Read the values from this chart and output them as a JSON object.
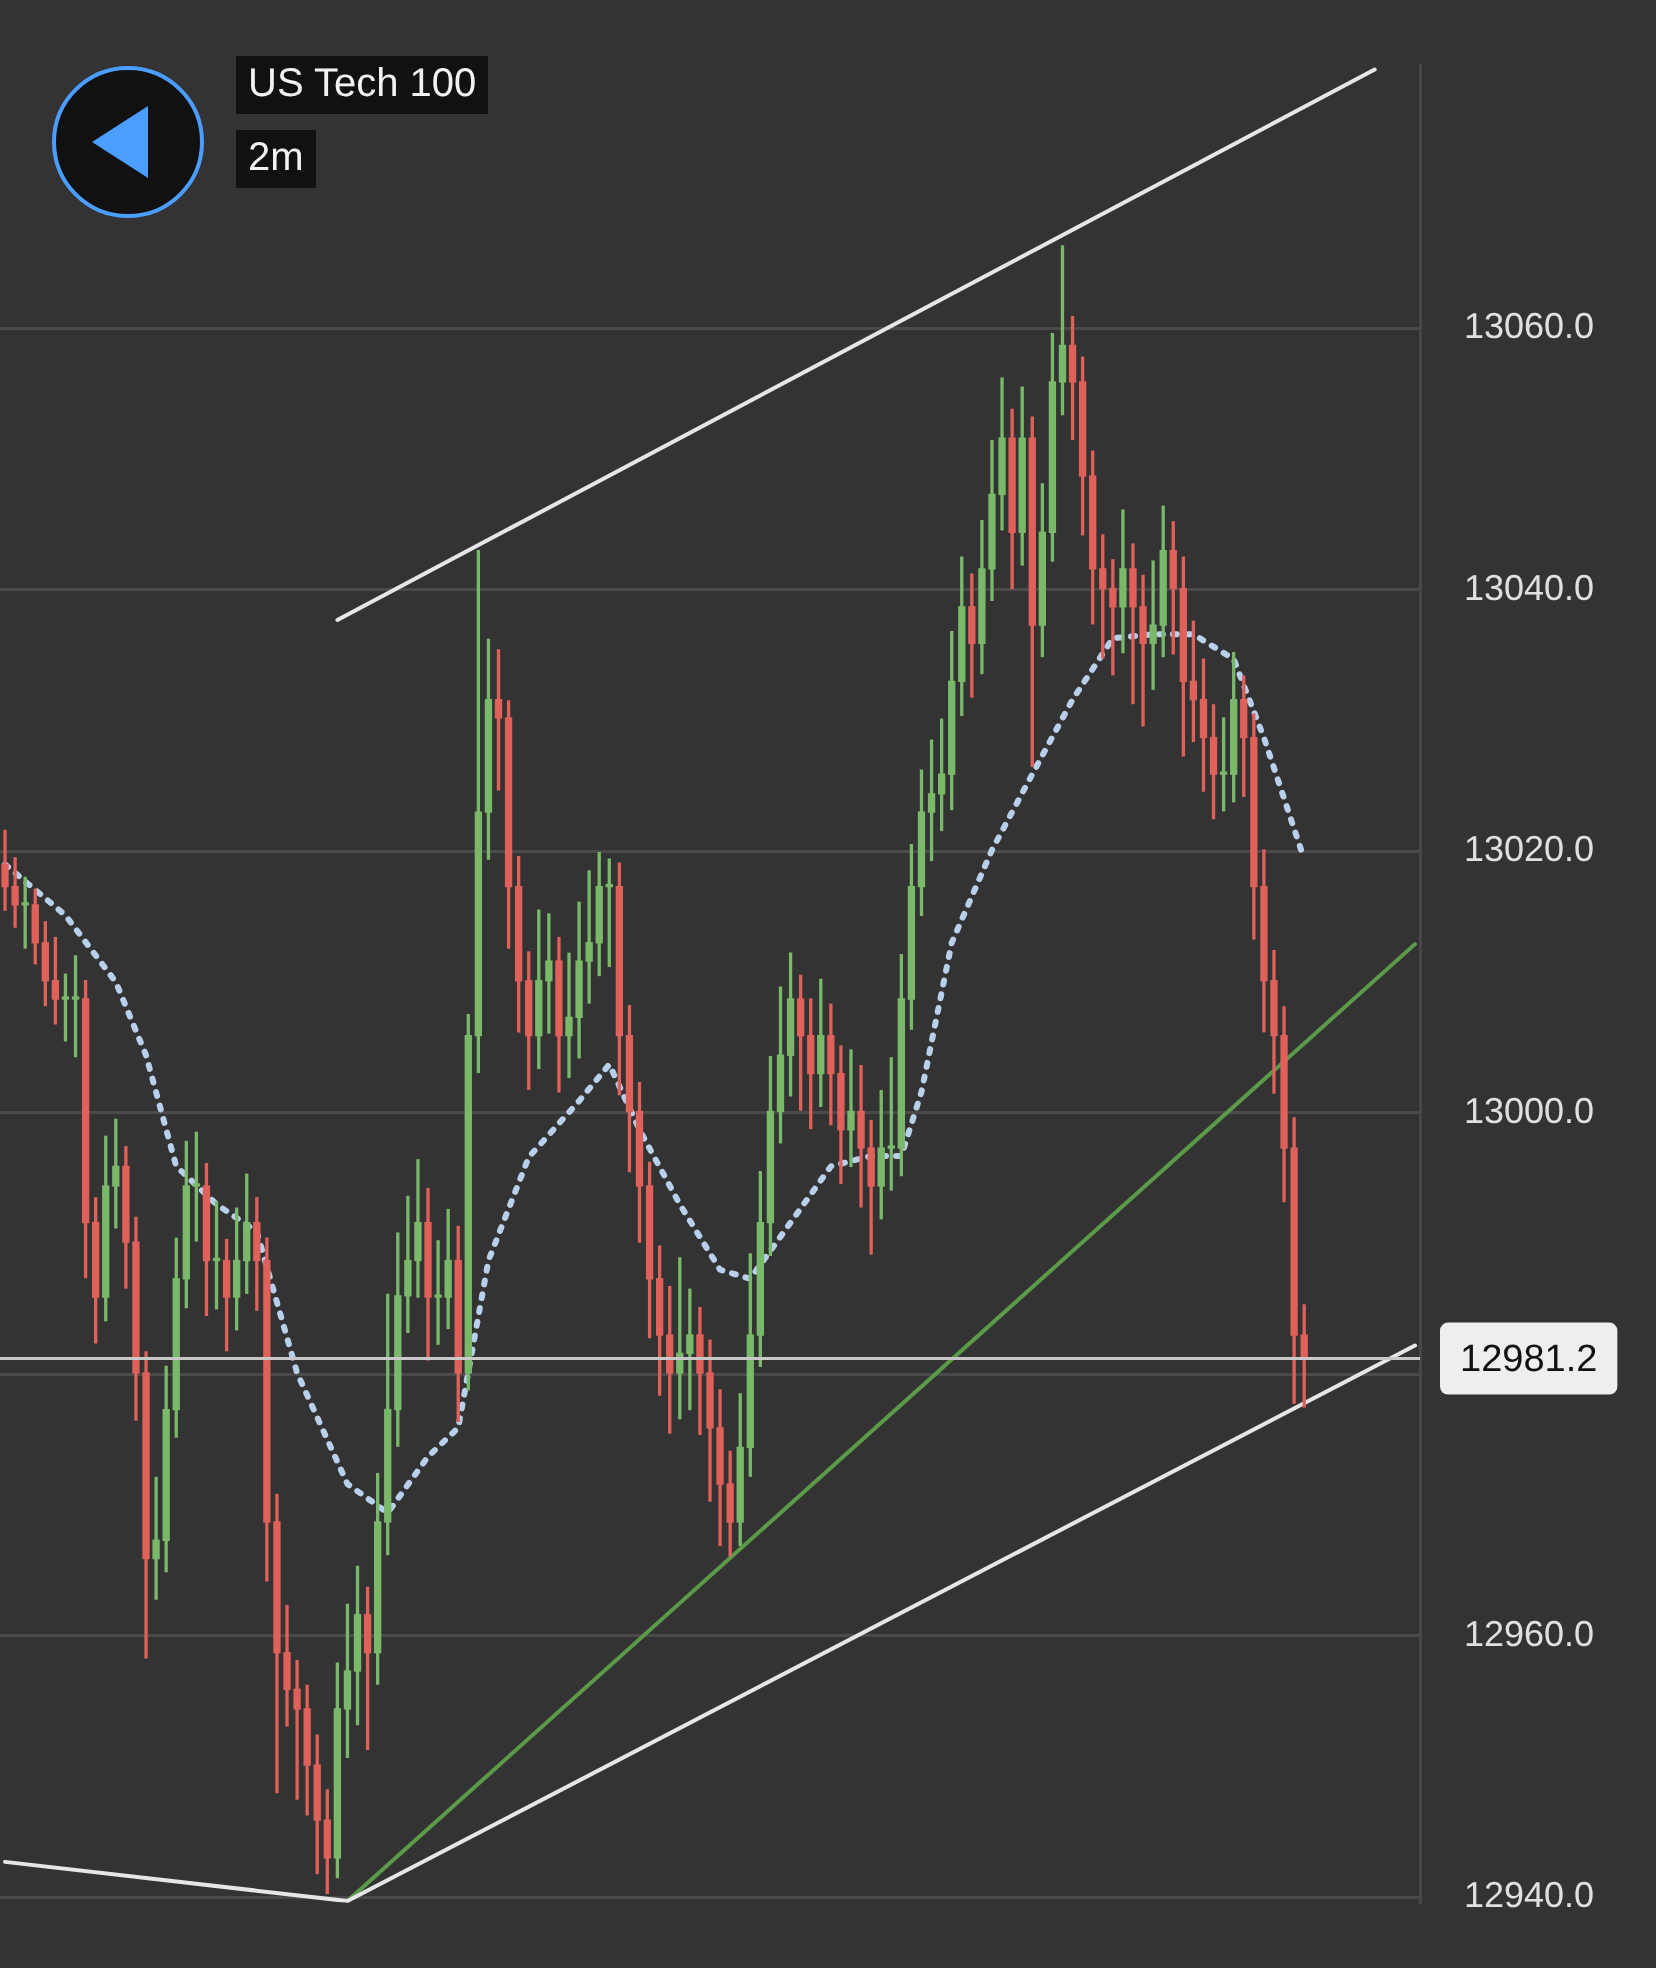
{
  "chart_data": {
    "type": "candlestick",
    "title": "US Tech 100",
    "subtitle": "2m",
    "categories": [
      null,
      null,
      null,
      null,
      null,
      null,
      null,
      null,
      null,
      null,
      null,
      null,
      null,
      null,
      null,
      null,
      null,
      null,
      null,
      null,
      null,
      null,
      null,
      null,
      null,
      null,
      null,
      null,
      null,
      null,
      null,
      null,
      null,
      null,
      null,
      null,
      null,
      null,
      null,
      null,
      null,
      null,
      null,
      null,
      null,
      null,
      null,
      null,
      null,
      null,
      null,
      null,
      null,
      null,
      null,
      null,
      null,
      null,
      null,
      null,
      null,
      null,
      null,
      null,
      null,
      null,
      null,
      null,
      null,
      null,
      null,
      null,
      null,
      null,
      null,
      null,
      null,
      null,
      null,
      null,
      null,
      null,
      null,
      null,
      null,
      null,
      null,
      null,
      null,
      null,
      null,
      null,
      null,
      null,
      null,
      null,
      null,
      null,
      null,
      null,
      null,
      null,
      null,
      null,
      null,
      null,
      null,
      null,
      null,
      null,
      null,
      null,
      null,
      null,
      null,
      null,
      null,
      null,
      null,
      null,
      null,
      null,
      null,
      null,
      null,
      null,
      null,
      null,
      null,
      null,
      null,
      null,
      null,
      null,
      null,
      null,
      null,
      null,
      null,
      null,
      null
    ],
    "ylim": [
      12939.6,
      13080.1
    ],
    "yticks": [
      {
        "value": 12940,
        "label": "12940.0"
      },
      {
        "value": 12960,
        "label": "12960.0"
      },
      {
        "value": 12980,
        "label": null
      },
      {
        "value": 13000,
        "label": "13000.0"
      },
      {
        "value": 13020,
        "label": "13020.0"
      },
      {
        "value": 13040,
        "label": "13040.0"
      },
      {
        "value": 13060,
        "label": "13060.0"
      }
    ],
    "grid": "y",
    "legend": false,
    "tick_labels": "y",
    "ref_lines": [
      {
        "axis": "y",
        "value": 12981.2,
        "label": "12981.2",
        "color": "#c8c8c8"
      }
    ],
    "series": [
      {
        "type": "line",
        "color": "#e6e6e6",
        "values": [
          null,
          null,
          null,
          null,
          null,
          null,
          null,
          null,
          null,
          null,
          null,
          null,
          null,
          null,
          null,
          null,
          null,
          null,
          null,
          null,
          null,
          null,
          null,
          null,
          null,
          null,
          null,
          null,
          null,
          null,
          null,
          null,
          null,
          13037.7,
          null,
          null,
          null,
          null,
          null,
          null,
          null,
          null,
          null,
          null,
          null,
          null,
          null,
          null,
          null,
          null,
          null,
          null,
          null,
          null,
          null,
          null,
          null,
          null,
          null,
          null,
          null,
          null,
          null,
          null,
          null,
          null,
          null,
          null,
          null,
          null,
          null,
          null,
          null,
          null,
          null,
          null,
          null,
          null,
          null,
          null,
          null,
          null,
          null,
          null,
          null,
          null,
          null,
          null,
          null,
          null,
          null,
          null,
          null,
          null,
          null,
          null,
          null,
          null,
          null,
          null,
          null,
          null,
          null,
          null,
          null,
          null,
          null,
          null,
          null,
          null,
          null,
          null,
          null,
          null,
          null,
          null,
          null,
          null,
          null,
          null,
          null,
          null,
          null,
          null,
          null,
          null,
          null,
          null,
          null,
          null,
          null,
          null,
          null,
          null,
          null,
          null,
          13079.8,
          null,
          null,
          null,
          null
        ]
      },
      {
        "type": "line",
        "color": "#e6e6e6",
        "values": [
          null,
          null,
          null,
          null,
          null,
          null,
          null,
          null,
          null,
          null,
          null,
          null,
          null,
          null,
          null,
          null,
          null,
          null,
          null,
          null,
          null,
          null,
          null,
          null,
          null,
          null,
          null,
          null,
          null,
          null,
          null,
          null,
          null,
          null,
          12939.7,
          null,
          null,
          null,
          null,
          null,
          null,
          null,
          null,
          null,
          null,
          null,
          null,
          null,
          null,
          null,
          null,
          null,
          null,
          null,
          null,
          null,
          null,
          null,
          null,
          null,
          null,
          null,
          null,
          null,
          null,
          null,
          null,
          null,
          null,
          null,
          null,
          null,
          null,
          null,
          null,
          null,
          null,
          null,
          null,
          null,
          null,
          null,
          null,
          null,
          null,
          null,
          null,
          null,
          null,
          null,
          null,
          null,
          null,
          null,
          null,
          null,
          null,
          null,
          null,
          null,
          null,
          null,
          null,
          null,
          null,
          null,
          null,
          null,
          null,
          null,
          null,
          null,
          null,
          null,
          null,
          null,
          null,
          null,
          null,
          null,
          null,
          null,
          null,
          null,
          null,
          null,
          null,
          null,
          null,
          null,
          null,
          null,
          null,
          null,
          null,
          null,
          null,
          null,
          null,
          null,
          12982.2
        ]
      },
      {
        "type": "line",
        "color": "#e6e6e6",
        "values": [
          12942.7,
          null,
          null,
          null,
          null,
          null,
          null,
          null,
          null,
          null,
          null,
          null,
          null,
          null,
          null,
          null,
          null,
          null,
          null,
          null,
          null,
          null,
          null,
          null,
          null,
          null,
          null,
          null,
          null,
          null,
          null,
          null,
          null,
          null,
          12939.7,
          null,
          null,
          null,
          null,
          null,
          null,
          null,
          null,
          null,
          null,
          null,
          null,
          null,
          null,
          null,
          null,
          null,
          null,
          null,
          null,
          null,
          null,
          null,
          null,
          null,
          null,
          null,
          null,
          null,
          null,
          null,
          null,
          null,
          null,
          null,
          null,
          null,
          null,
          null,
          null,
          null,
          null,
          null,
          null,
          null,
          null,
          null,
          null,
          null,
          null,
          null,
          null,
          null,
          null,
          null,
          null,
          null,
          null,
          null,
          null,
          null,
          null,
          null,
          null,
          null,
          null,
          null,
          null,
          null,
          null,
          null,
          null,
          null,
          null,
          null,
          null,
          null,
          null,
          null,
          null,
          null,
          null,
          null,
          null,
          null,
          null,
          null,
          null,
          null,
          null,
          null,
          null,
          null,
          null,
          null,
          null,
          null,
          null,
          null,
          null,
          null,
          null,
          null,
          null,
          null,
          null
        ]
      },
      {
        "type": "line",
        "color": "#5a9a48",
        "values": [
          null,
          null,
          null,
          null,
          null,
          null,
          null,
          null,
          null,
          null,
          null,
          null,
          null,
          null,
          null,
          null,
          null,
          null,
          null,
          null,
          null,
          null,
          null,
          null,
          null,
          null,
          null,
          null,
          null,
          null,
          null,
          null,
          null,
          null,
          12939.7,
          null,
          null,
          null,
          null,
          null,
          null,
          null,
          null,
          null,
          null,
          null,
          null,
          null,
          null,
          null,
          null,
          null,
          null,
          null,
          null,
          null,
          null,
          null,
          null,
          null,
          null,
          null,
          null,
          null,
          null,
          null,
          null,
          null,
          null,
          null,
          null,
          null,
          null,
          null,
          null,
          null,
          null,
          null,
          null,
          null,
          null,
          null,
          null,
          null,
          null,
          null,
          null,
          null,
          null,
          null,
          null,
          null,
          null,
          null,
          null,
          null,
          null,
          null,
          null,
          null,
          null,
          null,
          null,
          null,
          null,
          null,
          null,
          null,
          null,
          null,
          null,
          null,
          null,
          null,
          null,
          null,
          null,
          null,
          null,
          null,
          null,
          null,
          null,
          null,
          null,
          null,
          null,
          null,
          null,
          null,
          null,
          null,
          null,
          null,
          null,
          null,
          null,
          null,
          null,
          null,
          13012.9
        ]
      },
      {
        "type": "line",
        "color": "#b8d0ec",
        "line_style": "dotted",
        "values": [
          13019,
          null,
          null,
          null,
          null,
          null,
          13015.1,
          null,
          null,
          null,
          null,
          13010,
          null,
          null,
          13004.4,
          null,
          null,
          12995.9,
          null,
          null,
          null,
          12993,
          null,
          null,
          null,
          12990.9,
          null,
          null,
          null,
          12980.1,
          null,
          null,
          null,
          null,
          12971.6,
          null,
          null,
          null,
          12969.4,
          null,
          null,
          null,
          12973.7,
          null,
          null,
          12975.9,
          null,
          null,
          12988.7,
          null,
          null,
          null,
          12996.6,
          null,
          null,
          null,
          null,
          13000.9,
          null,
          null,
          13003.7,
          null,
          null,
          12998.7,
          null,
          null,
          null,
          12993,
          null,
          null,
          null,
          12988,
          null,
          null,
          12987.3,
          null,
          null,
          null,
          12991.6,
          null,
          null,
          null,
          12995.9,
          null,
          null,
          null,
          12996.7,
          null,
          null,
          12996.7,
          null,
          13001.6,
          null,
          null,
          13013,
          null,
          null,
          null,
          13020.1,
          null,
          null,
          null,
          13025.9,
          null,
          null,
          null,
          13031.6,
          null,
          null,
          null,
          13036.3,
          null,
          null,
          null,
          13036.6,
          null,
          null,
          null,
          13036.6,
          null,
          null,
          null,
          13034.7,
          null,
          null,
          13028.7,
          null,
          null,
          null,
          13019.4,
          null,
          null,
          null,
          null,
          null,
          null,
          null,
          null,
          null,
          null,
          null
        ]
      },
      {
        "type": "candlestick",
        "colors": [
          "#e0605a",
          "#e0605a",
          "#7ab86a",
          "#e0605a",
          "#e0605a",
          "#e0605a",
          "#7ab86a",
          "#7ab86a",
          "#e0605a",
          "#e0605a",
          "#7ab86a",
          "#7ab86a",
          "#e0605a",
          "#e0605a",
          "#e0605a",
          "#7ab86a",
          "#7ab86a",
          "#7ab86a",
          "#7ab86a",
          "#7ab86a",
          "#e0605a",
          "#7ab86a",
          "#e0605a",
          "#7ab86a",
          "#7ab86a",
          "#e0605a",
          "#e0605a",
          "#e0605a",
          "#e0605a",
          "#e0605a",
          "#e0605a",
          "#e0605a",
          "#e0605a",
          "#7ab86a",
          "#7ab86a",
          "#7ab86a",
          "#e0605a",
          "#7ab86a",
          "#7ab86a",
          "#7ab86a",
          "#7ab86a",
          "#7ab86a",
          "#e0605a",
          "#7ab86a",
          "#7ab86a",
          "#e0605a",
          "#7ab86a",
          "#7ab86a",
          "#7ab86a",
          "#e0605a",
          "#e0605a",
          "#e0605a",
          "#e0605a",
          "#7ab86a",
          "#7ab86a",
          "#e0605a",
          "#7ab86a",
          "#7ab86a",
          "#7ab86a",
          "#7ab86a",
          "#7ab86a",
          "#e0605a",
          "#e0605a",
          "#e0605a",
          "#e0605a",
          "#e0605a",
          "#e0605a",
          "#7ab86a",
          "#7ab86a",
          "#e0605a",
          "#e0605a",
          "#e0605a",
          "#e0605a",
          "#7ab86a",
          "#7ab86a",
          "#7ab86a",
          "#7ab86a",
          "#7ab86a",
          "#7ab86a",
          "#e0605a",
          "#e0605a",
          "#7ab86a",
          "#e0605a",
          "#e0605a",
          "#7ab86a",
          "#e0605a",
          "#e0605a",
          "#7ab86a",
          "#7ab86a",
          "#7ab86a",
          "#7ab86a",
          "#7ab86a",
          "#7ab86a",
          "#7ab86a",
          "#7ab86a",
          "#7ab86a",
          "#e0605a",
          "#7ab86a",
          "#7ab86a",
          "#7ab86a",
          "#e0605a",
          "#7ab86a",
          "#e0605a",
          "#7ab86a",
          "#7ab86a",
          "#7ab86a",
          "#e0605a",
          "#e0605a",
          "#e0605a",
          "#e0605a",
          "#e0605a",
          "#7ab86a",
          "#e0605a",
          "#e0605a",
          "#7ab86a",
          "#7ab86a",
          "#e0605a",
          "#e0605a",
          "#e0605a",
          "#e0605a",
          "#e0605a",
          "#7ab86a",
          "#7ab86a",
          "#e0605a",
          "#e0605a",
          "#e0605a",
          "#e0605a",
          "#e0605a",
          "#e0605a",
          "#e0605a",
          null,
          null,
          null,
          null,
          null,
          null,
          null,
          null,
          null,
          null,
          null
        ],
        "ohlc": [
          [
            13019,
            13021.6,
            13015.5,
            13017.3
          ],
          [
            13017.3,
            13019.5,
            13014.2,
            13015.9
          ],
          [
            13015.9,
            13018,
            13012.6,
            13015.9
          ],
          [
            13015.9,
            13017.1,
            13011.4,
            13013
          ],
          [
            13013,
            13014.6,
            13008.2,
            13010.1
          ],
          [
            13010.1,
            13013.4,
            13006.8,
            13008.7
          ],
          [
            13008.7,
            13010.6,
            13005.5,
            13008.7
          ],
          [
            13008.7,
            13012,
            13004.3,
            13008.7
          ],
          [
            13008.7,
            13010.1,
            12987.4,
            12991.6
          ],
          [
            12991.6,
            12993.5,
            12982.4,
            12985.9
          ],
          [
            12985.9,
            12998.2,
            12984.1,
            12994.4
          ],
          [
            12994.4,
            12999.5,
            12991.2,
            12995.9
          ],
          [
            12995.9,
            12997.4,
            12986.6,
            12990.1
          ],
          [
            12990.1,
            12992,
            12976.5,
            12980.1
          ],
          [
            12980.1,
            12981.7,
            12958.3,
            12965.9
          ],
          [
            12965.9,
            12972.1,
            12962.8,
            12967.3
          ],
          [
            12967.3,
            12980.6,
            12964.9,
            12977.3
          ],
          [
            12977.3,
            12990.4,
            12975.2,
            12987.3
          ],
          [
            12987.3,
            12997.8,
            12985.1,
            12994.4
          ],
          [
            12994.4,
            12998.5,
            12990.2,
            12994.4
          ],
          [
            12994.4,
            12996.1,
            12984.5,
            12988.7
          ],
          [
            12988.7,
            12993.2,
            12985,
            12988.7
          ],
          [
            12988.7,
            12990.3,
            12981.8,
            12985.9
          ],
          [
            12985.9,
            12992.7,
            12983.4,
            12988.7
          ],
          [
            12988.7,
            12995.3,
            12986.2,
            12991.6
          ],
          [
            12991.6,
            12993.5,
            12984.9,
            12988.7
          ],
          [
            12988.7,
            12990.4,
            12964.2,
            12968.7
          ],
          [
            12968.7,
            12970.8,
            12948,
            12958.7
          ],
          [
            12958.7,
            12962.3,
            12953.1,
            12955.9
          ],
          [
            12955.9,
            12958.1,
            12947.5,
            12954.4
          ],
          [
            12954.4,
            12956.2,
            12946.3,
            12950.1
          ],
          [
            12950.1,
            12952.4,
            12941.8,
            12945.9
          ],
          [
            12945.9,
            12948.2,
            12940.3,
            12943
          ],
          [
            12943,
            12957.9,
            12941.5,
            12954.4
          ],
          [
            12954.4,
            12962.4,
            12950.7,
            12957.3
          ],
          [
            12957.3,
            12965.3,
            12953.2,
            12961.6
          ],
          [
            12961.6,
            12963.7,
            12951.3,
            12958.7
          ],
          [
            12958.7,
            12972.4,
            12956.3,
            12968.7
          ],
          [
            12968.7,
            12986.1,
            12966.2,
            12977.3
          ],
          [
            12977.3,
            12990.8,
            12974.5,
            12986
          ],
          [
            12986,
            12993.6,
            12983.2,
            12988.7
          ],
          [
            12988.7,
            12996.4,
            12985.9,
            12991.6
          ],
          [
            12991.6,
            12994.2,
            12981.1,
            12985.9
          ],
          [
            12985.9,
            12990.2,
            12982.3,
            12985.9
          ],
          [
            12985.9,
            12992.6,
            12983.5,
            12988.7
          ],
          [
            12988.7,
            12991.3,
            12976.4,
            12980.1
          ],
          [
            12980.1,
            13007.5,
            12978.8,
            13005.9
          ],
          [
            13005.9,
            13043,
            13003.1,
            13023
          ],
          [
            13023,
            13036.2,
            13019.4,
            13031.6
          ],
          [
            13031.6,
            13035.4,
            13024.7,
            13030.2
          ],
          [
            13030.2,
            13031.5,
            13012.6,
            13017.3
          ],
          [
            13017.3,
            13019.6,
            13006.2,
            13010.1
          ],
          [
            13010.1,
            13012.3,
            13001.8,
            13005.9
          ],
          [
            13005.9,
            13015.5,
            13003.4,
            13010.1
          ],
          [
            13010.1,
            13015.2,
            13006.1,
            13011.6
          ],
          [
            13011.6,
            13013.4,
            13001.6,
            13005.9
          ],
          [
            13005.9,
            13012.2,
            13002.7,
            13007.3
          ],
          [
            13007.3,
            13016.1,
            13004.2,
            13011.6
          ],
          [
            13011.6,
            13018.5,
            13008.4,
            13013
          ],
          [
            13013,
            13019.9,
            13010.5,
            13017.3
          ],
          [
            13017.3,
            13019.4,
            13011.2,
            13017.3
          ],
          [
            13017.3,
            13019.1,
            13001.4,
            13005.9
          ],
          [
            13005.9,
            13008.2,
            12995.5,
            13000.1
          ],
          [
            13000.1,
            13002.3,
            12990.1,
            12994.4
          ],
          [
            12994.4,
            12996.2,
            12982.8,
            12987.3
          ],
          [
            12987.3,
            12989.8,
            12978.4,
            12983
          ],
          [
            12983,
            12986.7,
            12975.5,
            12980.1
          ],
          [
            12980.1,
            12988.9,
            12976.6,
            12981.6
          ],
          [
            12981.6,
            12986.5,
            12977.3,
            12983
          ],
          [
            12983,
            12985.1,
            12975.4,
            12980.1
          ],
          [
            12980.1,
            12982.6,
            12970.3,
            12975.9
          ],
          [
            12975.9,
            12978.8,
            12966.9,
            12971.6
          ],
          [
            12971.6,
            12974.1,
            12966.1,
            12968.7
          ],
          [
            12968.7,
            12978.5,
            12966.9,
            12974.4
          ],
          [
            12974.4,
            12989.2,
            12972.2,
            12983
          ],
          [
            12983,
            12995.5,
            12980.6,
            12991.6
          ],
          [
            12991.6,
            13004.3,
            12989.1,
            13000.1
          ],
          [
            13000.1,
            13009.6,
            12997.7,
            13004.4
          ],
          [
            13004.4,
            13012.2,
            13001.3,
            13008.7
          ],
          [
            13008.7,
            13010.5,
            13000.2,
            13005.9
          ],
          [
            13005.9,
            13008.7,
            12998.8,
            13003
          ],
          [
            13003,
            13010.2,
            13000.5,
            13005.9
          ],
          [
            13005.9,
            13008.3,
            12999.1,
            13003
          ],
          [
            13003,
            13005.1,
            12994.6,
            12998.7
          ],
          [
            12998.7,
            13004.8,
            12995.9,
            13000.1
          ],
          [
            13000.1,
            13003.6,
            12992.8,
            12997.3
          ],
          [
            12997.3,
            12999.4,
            12989.2,
            12994.4
          ],
          [
            12994.4,
            13001.7,
            12991.9,
            12997.3
          ],
          [
            12997.3,
            13004.2,
            12994.1,
            12997.3
          ],
          [
            12997.3,
            13012.1,
            12995.2,
            13008.7
          ],
          [
            13008.7,
            13020.5,
            13006.4,
            13017.3
          ],
          [
            13017.3,
            13026.2,
            13015.1,
            13023
          ],
          [
            13023,
            13028.5,
            13019.3,
            13024.4
          ],
          [
            13024.4,
            13030.1,
            13021.6,
            13025.9
          ],
          [
            13025.9,
            13036.8,
            13023.2,
            13033
          ],
          [
            13033,
            13042.5,
            13030.4,
            13038.7
          ],
          [
            13038.7,
            13041.2,
            13031.8,
            13035.9
          ],
          [
            13035.9,
            13045.3,
            13033.6,
            13041.6
          ],
          [
            13041.6,
            13051.4,
            13039.2,
            13047.3
          ],
          [
            13047.3,
            13056.2,
            13044.6,
            13051.6
          ],
          [
            13051.6,
            13053.8,
            13040.1,
            13044.4
          ],
          [
            13044.4,
            13055.5,
            13041.9,
            13051.6
          ],
          [
            13051.6,
            13053.2,
            13026.5,
            13037.3
          ],
          [
            13037.3,
            13048.1,
            13034.9,
            13044.4
          ],
          [
            13044.4,
            13059.6,
            13042.2,
            13055.9
          ],
          [
            13055.9,
            13066.3,
            13053.4,
            13058.7
          ],
          [
            13058.7,
            13060.9,
            13051.5,
            13055.9
          ],
          [
            13055.9,
            13057.8,
            13044.2,
            13048.7
          ],
          [
            13048.7,
            13050.6,
            13037.4,
            13041.6
          ],
          [
            13041.6,
            13044.2,
            13034.8,
            13040.1
          ],
          [
            13040.1,
            13042.3,
            13033.5,
            13038.7
          ],
          [
            13038.7,
            13046.1,
            13035.2,
            13041.6
          ],
          [
            13041.6,
            13043.5,
            13031.3,
            13038.7
          ],
          [
            13038.7,
            13041.1,
            13029.6,
            13035.9
          ],
          [
            13035.9,
            13042.2,
            13032.4,
            13037.3
          ],
          [
            13037.3,
            13046.4,
            13034.9,
            13043
          ],
          [
            13043,
            13045.2,
            13035.1,
            13040.1
          ],
          [
            13040.1,
            13042.5,
            13027.3,
            13033
          ],
          [
            13033,
            13037.6,
            13028.4,
            13031.6
          ],
          [
            13031.6,
            13034.7,
            13024.6,
            13028.7
          ],
          [
            13028.7,
            13031.2,
            13022.5,
            13025.9
          ],
          [
            13025.9,
            13030.2,
            13023.1,
            13025.9
          ],
          [
            13025.9,
            13035.2,
            13023.8,
            13031.6
          ],
          [
            13031.6,
            13033.4,
            13024.2,
            13028.7
          ],
          [
            13028.7,
            13030.5,
            13013.3,
            13017.3
          ],
          [
            13017.3,
            13020.1,
            13006.2,
            13010.1
          ],
          [
            13010.1,
            13012.4,
            13001.5,
            13005.9
          ],
          [
            13005.9,
            13008.1,
            12993.2,
            12997.3
          ],
          [
            12997.3,
            12999.6,
            12977.8,
            12983
          ],
          [
            12983,
            12985.3,
            12977.5,
            12981.2
          ],
          null,
          null,
          null,
          null,
          null,
          null,
          null,
          null,
          null,
          null,
          null
        ]
      }
    ]
  }
}
